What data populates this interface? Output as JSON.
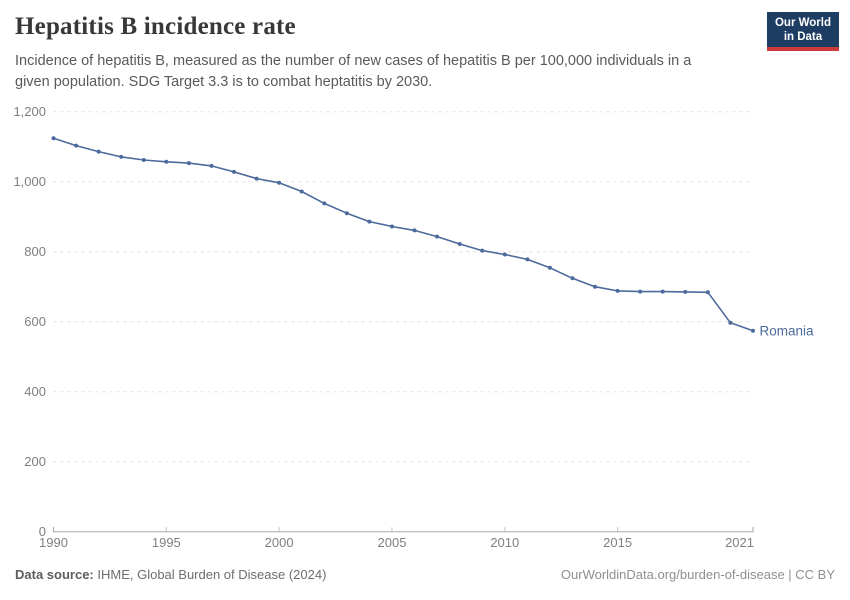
{
  "header": {
    "title": "Hepatitis B incidence rate",
    "subtitle": "Incidence of hepatitis B, measured as the number of new cases of hepatitis B per 100,000 individuals in a given population. SDG Target 3.3 is to combat heptatitis by 2030.",
    "logo": {
      "line1": "Our World",
      "line2": "in Data",
      "bg_color": "#1d3d63",
      "stripe_color": "#cc3a3a"
    }
  },
  "chart_data": {
    "type": "line",
    "title": "Hepatitis B incidence rate",
    "xlabel": "",
    "ylabel": "",
    "x": [
      1990,
      1991,
      1992,
      1993,
      1994,
      1995,
      1996,
      1997,
      1998,
      1999,
      2000,
      2001,
      2002,
      2003,
      2004,
      2005,
      2006,
      2007,
      2008,
      2009,
      2010,
      2011,
      2012,
      2013,
      2014,
      2015,
      2016,
      2017,
      2018,
      2019,
      2020,
      2021
    ],
    "series": [
      {
        "name": "Romania",
        "color": "#4C6A9C",
        "values": [
          1124,
          1103,
          1086,
          1071,
          1062,
          1057,
          1053,
          1045,
          1028,
          1009,
          997,
          972,
          938,
          910,
          886,
          872,
          861,
          843,
          822,
          803,
          792,
          778,
          754,
          724,
          700,
          688,
          686,
          686,
          685,
          684,
          597,
          574
        ]
      }
    ],
    "ylim": [
      0,
      1200
    ],
    "yticks": [
      0,
      200,
      400,
      600,
      800,
      1000,
      1200
    ],
    "ytick_labels": [
      "0",
      "200",
      "400",
      "600",
      "800",
      "1,000",
      "1,200"
    ],
    "x_axis_ticks": [
      1990,
      1995,
      2000,
      2005,
      2010,
      2015,
      2021
    ],
    "xtick_labels": [
      "1990",
      "1995",
      "2000",
      "2005",
      "2010",
      "2015",
      "2021"
    ],
    "grid": "horizontal dashed",
    "legend_position": "end-of-line label",
    "marker": "dot"
  },
  "footer": {
    "source_label": "Data source:",
    "source_text": " IHME, Global Burden of Disease (2024)",
    "rights": "OurWorldinData.org/burden-of-disease | CC BY"
  },
  "colors": {
    "series_blue": "#4C6A9C",
    "grid": "#e0e0e0",
    "axis": "#a8a8a8",
    "tick": "#c4c4c4",
    "axis_text": "#7f7f7f"
  }
}
